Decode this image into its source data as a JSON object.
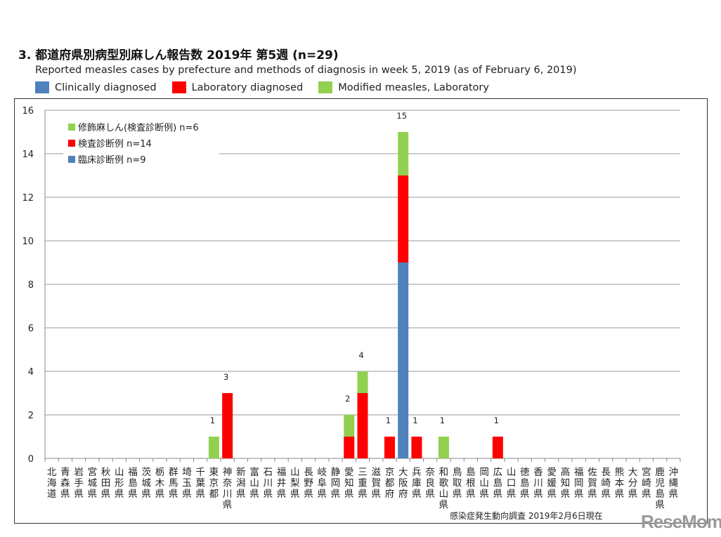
{
  "title": "3. 都道府県別病型別麻しん報告数  2019年 第5週 (n=29)",
  "subtitle": "Reported measles cases by prefecture and methods of diagnosis in week 5, 2019 (as of February 6, 2019)",
  "top_legend": [
    {
      "label": "Clinically diagnosed",
      "color": "#4f81bd"
    },
    {
      "label": "Laboratory diagnosed",
      "color": "#ff0000"
    },
    {
      "label": "Modified measles, Laboratory",
      "color": "#92d050"
    }
  ],
  "source": "感染症発生動向調査 2019年2月6日現在",
  "logo": "ReseMom",
  "chart_data": {
    "type": "bar",
    "stacked": true,
    "ylim": [
      0,
      16
    ],
    "yticks": [
      0,
      2,
      4,
      6,
      8,
      10,
      12,
      14,
      16
    ],
    "grid": true,
    "legend_placement": "top-left",
    "categories": [
      "北海道",
      "青森県",
      "岩手県",
      "宮城県",
      "秋田県",
      "山形県",
      "福島県",
      "茨城県",
      "栃木県",
      "群馬県",
      "埼玉県",
      "千葉県",
      "東京都",
      "神奈川県",
      "新潟県",
      "富山県",
      "石川県",
      "福井県",
      "山梨県",
      "長野県",
      "岐阜県",
      "静岡県",
      "愛知県",
      "三重県",
      "滋賀県",
      "京都府",
      "大阪府",
      "兵庫県",
      "奈良県",
      "和歌山県",
      "鳥取県",
      "島根県",
      "岡山県",
      "広島県",
      "山口県",
      "徳島県",
      "香川県",
      "愛媛県",
      "高知県",
      "福岡県",
      "佐賀県",
      "長崎県",
      "熊本県",
      "大分県",
      "宮崎県",
      "鹿児島県",
      "沖縄県"
    ],
    "series": [
      {
        "name": "臨床診断例 n=9",
        "color": "#4f81bd",
        "values": [
          0,
          0,
          0,
          0,
          0,
          0,
          0,
          0,
          0,
          0,
          0,
          0,
          0,
          0,
          0,
          0,
          0,
          0,
          0,
          0,
          0,
          0,
          0,
          0,
          0,
          0,
          9,
          0,
          0,
          0,
          0,
          0,
          0,
          0,
          0,
          0,
          0,
          0,
          0,
          0,
          0,
          0,
          0,
          0,
          0,
          0,
          0
        ]
      },
      {
        "name": "検査診断例 n=14",
        "color": "#ff0000",
        "values": [
          0,
          0,
          0,
          0,
          0,
          0,
          0,
          0,
          0,
          0,
          0,
          0,
          0,
          3,
          0,
          0,
          0,
          0,
          0,
          0,
          0,
          0,
          1,
          3,
          0,
          1,
          4,
          1,
          0,
          0,
          0,
          0,
          0,
          1,
          0,
          0,
          0,
          0,
          0,
          0,
          0,
          0,
          0,
          0,
          0,
          0,
          0
        ]
      },
      {
        "name": "修飾麻しん(検査診断例) n=6",
        "color": "#92d050",
        "values": [
          0,
          0,
          0,
          0,
          0,
          0,
          0,
          0,
          0,
          0,
          0,
          0,
          1,
          0,
          0,
          0,
          0,
          0,
          0,
          0,
          0,
          0,
          1,
          1,
          0,
          0,
          2,
          0,
          0,
          1,
          0,
          0,
          0,
          0,
          0,
          0,
          0,
          0,
          0,
          0,
          0,
          0,
          0,
          0,
          0,
          0,
          0
        ]
      }
    ]
  }
}
